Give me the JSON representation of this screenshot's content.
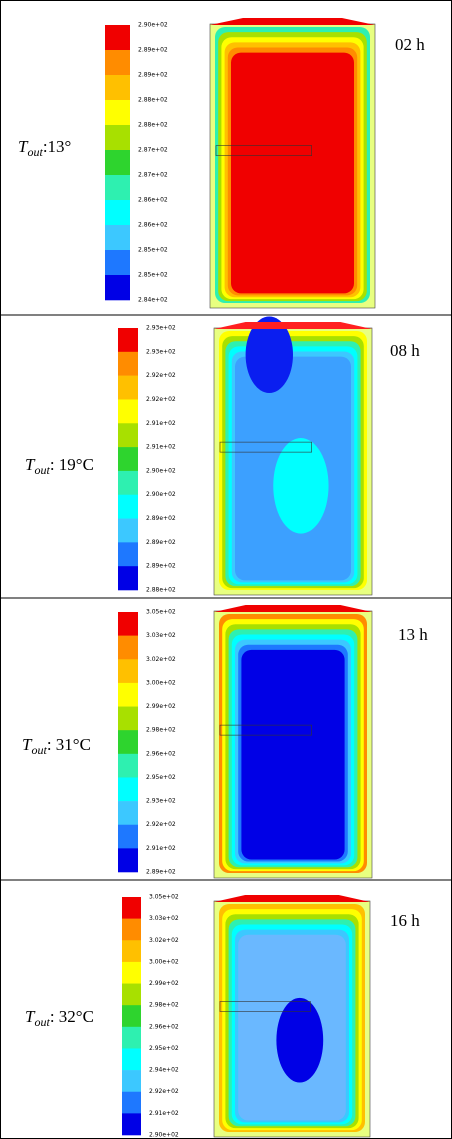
{
  "colors": [
    "#f00000",
    "#ff8c00",
    "#ffc000",
    "#ffff00",
    "#a8e000",
    "#2ed42e",
    "#2ef0b0",
    "#00ffff",
    "#3cc8ff",
    "#1e78ff",
    "#0000e6"
  ],
  "panels": [
    {
      "symbol": "T",
      "subscript": "out",
      "suffix": ":13°",
      "time": "02 h",
      "legend": [
        "2.90e+02",
        "2.89e+02",
        "2.89e+02",
        "2.88e+02",
        "2.88e+02",
        "2.87e+02",
        "2.87e+02",
        "2.86e+02",
        "2.86e+02",
        "2.85e+02",
        "2.85e+02",
        "2.84e+02"
      ]
    },
    {
      "symbol": "T",
      "subscript": "out",
      "suffix": ": 19°C",
      "time": "08 h",
      "legend": [
        "2.93e+02",
        "2.93e+02",
        "2.92e+02",
        "2.92e+02",
        "2.91e+02",
        "2.91e+02",
        "2.90e+02",
        "2.90e+02",
        "2.89e+02",
        "2.89e+02",
        "2.89e+02",
        "2.88e+02"
      ]
    },
    {
      "symbol": "T",
      "subscript": "out",
      "suffix": ": 31°C",
      "time": "13 h",
      "legend": [
        "3.05e+02",
        "3.03e+02",
        "3.02e+02",
        "3.00e+02",
        "2.99e+02",
        "2.98e+02",
        "2.96e+02",
        "2.95e+02",
        "2.93e+02",
        "2.92e+02",
        "2.91e+02",
        "2.89e+02"
      ]
    },
    {
      "symbol": "T",
      "subscript": "out",
      "suffix": ": 32°C",
      "time": "16 h",
      "legend": [
        "3.05e+02",
        "3.03e+02",
        "3.02e+02",
        "3.00e+02",
        "2.99e+02",
        "2.98e+02",
        "2.96e+02",
        "2.95e+02",
        "2.94e+02",
        "2.92e+02",
        "2.91e+02",
        "2.90e+02"
      ]
    }
  ]
}
